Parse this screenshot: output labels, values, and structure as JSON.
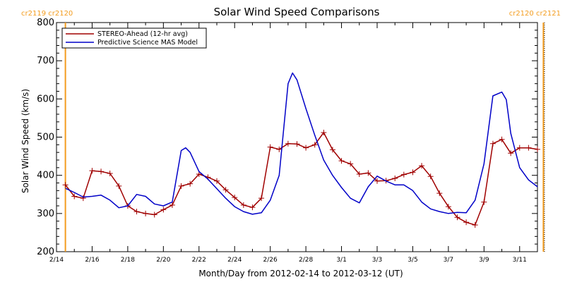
{
  "colors": {
    "stereo": "#a00000",
    "model": "#0000c8",
    "cr_marker": "#f39c1e",
    "axis": "#000000"
  },
  "chart_data": {
    "type": "line",
    "title": "Solar Wind Speed Comparisons",
    "xlabel": "Month/Day from 2012-02-14 to 2012-03-12 (UT)",
    "ylabel": "Solar Wind Speed (km/s)",
    "xlim": [
      "2012-02-14",
      "2012-03-12"
    ],
    "ylim": [
      200,
      800
    ],
    "x_ticks": [
      "2/14",
      "2/16",
      "2/18",
      "2/20",
      "2/22",
      "2/24",
      "2/26",
      "2/28",
      "3/1",
      "3/3",
      "3/5",
      "3/7",
      "3/9",
      "3/11"
    ],
    "y_ticks": [
      200,
      300,
      400,
      500,
      600,
      700,
      800
    ],
    "grid": false,
    "legend_position": "top-left",
    "carrington_markers": {
      "left_label": "cr2119 cr2120",
      "right_label": "cr2120 cr2121",
      "left_date": "2012-02-14 12:00",
      "right_date": "2012-03-12 08:00"
    },
    "series": [
      {
        "name": "STEREO-Ahead (12-hr avg)",
        "style": "line-with-plus-markers",
        "x": [
          "2012-02-14 12:00",
          "2012-02-15 00:00",
          "2012-02-15 12:00",
          "2012-02-16 00:00",
          "2012-02-16 12:00",
          "2012-02-17 00:00",
          "2012-02-17 12:00",
          "2012-02-18 00:00",
          "2012-02-18 12:00",
          "2012-02-19 00:00",
          "2012-02-19 12:00",
          "2012-02-20 00:00",
          "2012-02-20 12:00",
          "2012-02-21 00:00",
          "2012-02-21 12:00",
          "2012-02-22 00:00",
          "2012-02-22 12:00",
          "2012-02-23 00:00",
          "2012-02-23 12:00",
          "2012-02-24 00:00",
          "2012-02-24 12:00",
          "2012-02-25 00:00",
          "2012-02-25 12:00",
          "2012-02-26 00:00",
          "2012-02-26 12:00",
          "2012-02-27 00:00",
          "2012-02-27 12:00",
          "2012-02-28 00:00",
          "2012-02-28 12:00",
          "2012-02-29 00:00",
          "2012-02-29 12:00",
          "2012-03-01 00:00",
          "2012-03-01 12:00",
          "2012-03-02 00:00",
          "2012-03-02 12:00",
          "2012-03-03 00:00",
          "2012-03-03 12:00",
          "2012-03-04 00:00",
          "2012-03-04 12:00",
          "2012-03-05 00:00",
          "2012-03-05 12:00",
          "2012-03-06 00:00",
          "2012-03-06 12:00",
          "2012-03-07 00:00",
          "2012-03-07 12:00",
          "2012-03-08 00:00",
          "2012-03-08 12:00",
          "2012-03-09 00:00",
          "2012-03-09 12:00",
          "2012-03-10 00:00",
          "2012-03-10 12:00",
          "2012-03-11 00:00",
          "2012-03-11 12:00",
          "2012-03-12 00:00"
        ],
        "y": [
          375,
          345,
          340,
          412,
          410,
          405,
          372,
          320,
          305,
          300,
          297,
          310,
          322,
          372,
          378,
          403,
          395,
          385,
          362,
          342,
          322,
          316,
          340,
          474,
          468,
          483,
          482,
          472,
          480,
          512,
          467,
          438,
          430,
          403,
          406,
          385,
          386,
          392,
          402,
          408,
          425,
          397,
          353,
          318,
          290,
          277,
          270,
          330,
          483,
          494,
          458,
          472,
          472,
          468
        ]
      },
      {
        "name": "Predictive Science MAS Model",
        "style": "line",
        "x": [
          "2012-02-14 12:00",
          "2012-02-15 00:00",
          "2012-02-15 12:00",
          "2012-02-16 00:00",
          "2012-02-16 12:00",
          "2012-02-17 00:00",
          "2012-02-17 12:00",
          "2012-02-18 00:00",
          "2012-02-18 12:00",
          "2012-02-19 00:00",
          "2012-02-19 12:00",
          "2012-02-20 00:00",
          "2012-02-20 12:00",
          "2012-02-21 00:00",
          "2012-02-21 06:00",
          "2012-02-21 12:00",
          "2012-02-22 00:00",
          "2012-02-22 12:00",
          "2012-02-23 00:00",
          "2012-02-23 12:00",
          "2012-02-24 00:00",
          "2012-02-24 12:00",
          "2012-02-25 00:00",
          "2012-02-25 12:00",
          "2012-02-26 00:00",
          "2012-02-26 12:00",
          "2012-02-27 00:00",
          "2012-02-27 06:00",
          "2012-02-27 12:00",
          "2012-02-28 00:00",
          "2012-02-28 12:00",
          "2012-02-29 00:00",
          "2012-02-29 12:00",
          "2012-03-01 00:00",
          "2012-03-01 12:00",
          "2012-03-02 00:00",
          "2012-03-02 12:00",
          "2012-03-03 00:00",
          "2012-03-03 12:00",
          "2012-03-04 00:00",
          "2012-03-04 12:00",
          "2012-03-05 00:00",
          "2012-03-05 12:00",
          "2012-03-06 00:00",
          "2012-03-06 12:00",
          "2012-03-07 00:00",
          "2012-03-07 12:00",
          "2012-03-08 00:00",
          "2012-03-08 12:00",
          "2012-03-09 00:00",
          "2012-03-09 12:00",
          "2012-03-10 00:00",
          "2012-03-10 06:00",
          "2012-03-10 12:00",
          "2012-03-11 00:00",
          "2012-03-11 12:00",
          "2012-03-12 00:00"
        ],
        "y": [
          366,
          355,
          343,
          345,
          348,
          335,
          315,
          320,
          350,
          345,
          325,
          320,
          330,
          465,
          472,
          460,
          410,
          390,
          365,
          340,
          318,
          305,
          298,
          302,
          335,
          400,
          640,
          668,
          650,
          575,
          505,
          440,
          400,
          368,
          340,
          328,
          370,
          398,
          385,
          375,
          375,
          360,
          330,
          312,
          305,
          300,
          303,
          302,
          335,
          430,
          608,
          618,
          598,
          510,
          420,
          388,
          370
        ]
      }
    ]
  }
}
